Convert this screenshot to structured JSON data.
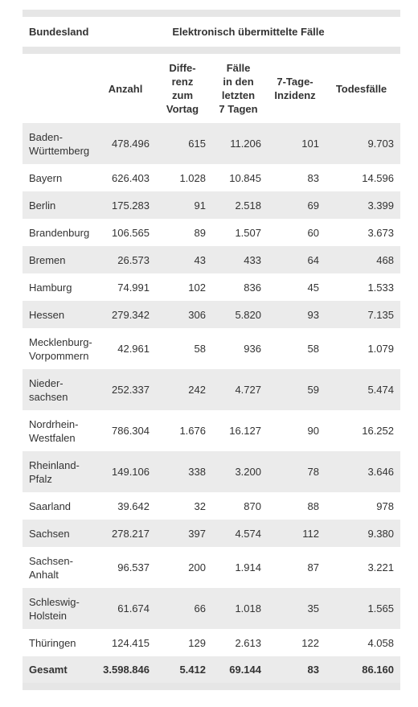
{
  "header": {
    "first": "Bundesland",
    "group": "Elektronisch übermittelte Fälle"
  },
  "columns": [
    "Anzahl",
    "Diffe-\nrenz\nzum\nVortag",
    "Fälle\nin den\nletzten\n7 Tagen",
    "7-Tage-\nInzidenz",
    "Todesfälle"
  ],
  "rows": [
    [
      "Baden-\nWürttemberg",
      "478.496",
      "615",
      "11.206",
      "101",
      "9.703"
    ],
    [
      "Bayern",
      "626.403",
      "1.028",
      "10.845",
      "83",
      "14.596"
    ],
    [
      "Berlin",
      "175.283",
      "91",
      "2.518",
      "69",
      "3.399"
    ],
    [
      "Brandenburg",
      "106.565",
      "89",
      "1.507",
      "60",
      "3.673"
    ],
    [
      "Bremen",
      "26.573",
      "43",
      "433",
      "64",
      "468"
    ],
    [
      "Hamburg",
      "74.991",
      "102",
      "836",
      "45",
      "1.533"
    ],
    [
      "Hessen",
      "279.342",
      "306",
      "5.820",
      "93",
      "7.135"
    ],
    [
      "Mecklenburg-\nVorpommern",
      "42.961",
      "58",
      "936",
      "58",
      "1.079"
    ],
    [
      "Nieder-\nsachsen",
      "252.337",
      "242",
      "4.727",
      "59",
      "5.474"
    ],
    [
      "Nordrhein-\nWestfalen",
      "786.304",
      "1.676",
      "16.127",
      "90",
      "16.252"
    ],
    [
      "Rheinland-\nPfalz",
      "149.106",
      "338",
      "3.200",
      "78",
      "3.646"
    ],
    [
      "Saarland",
      "39.642",
      "32",
      "870",
      "88",
      "978"
    ],
    [
      "Sachsen",
      "278.217",
      "397",
      "4.574",
      "112",
      "9.380"
    ],
    [
      "Sachsen-\nAnhalt",
      "96.537",
      "200",
      "1.914",
      "87",
      "3.221"
    ],
    [
      "Schleswig-\nHolstein",
      "61.674",
      "66",
      "1.018",
      "35",
      "1.565"
    ],
    [
      "Thüringen",
      "124.415",
      "129",
      "2.613",
      "122",
      "4.058"
    ]
  ],
  "total": [
    "Gesamt",
    "3.598.846",
    "5.412",
    "69.144",
    "83",
    "86.160"
  ]
}
